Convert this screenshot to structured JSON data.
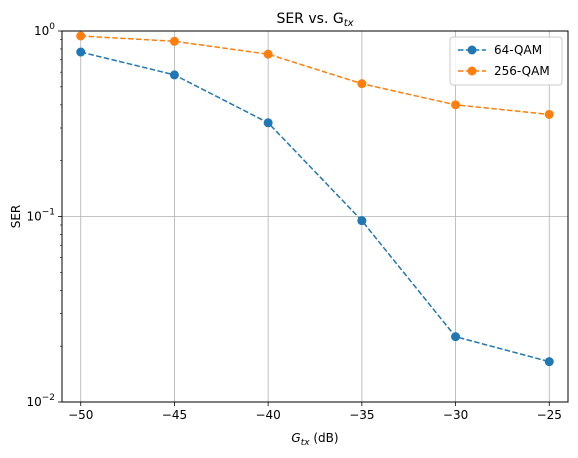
{
  "chart_data": {
    "type": "line",
    "title": "SER vs. G",
    "title_sub": "tx",
    "xlabel": "G",
    "xlabel_sub": "tx",
    "xlabel_suffix": " (dB)",
    "ylabel": "SER",
    "yscale": "log",
    "xlim": [
      -51.0,
      -24.0
    ],
    "ylim": [
      0.01,
      1
    ],
    "grid": true,
    "legend_position": "top-right",
    "x": [
      -50,
      -45,
      -40,
      -35,
      -30,
      -25
    ],
    "xticks": [
      "−50",
      "−45",
      "−40",
      "−35",
      "−30",
      "−25"
    ],
    "yticks": [
      {
        "value": 0.01,
        "base": "10",
        "exp": "−2"
      },
      {
        "value": 0.1,
        "base": "10",
        "exp": "−1"
      },
      {
        "value": 1,
        "base": "10",
        "exp": "0"
      }
    ],
    "series": [
      {
        "name": "64-QAM",
        "color": "#1f77b4",
        "values": [
          0.77,
          0.58,
          0.32,
          0.095,
          0.0225,
          0.0165
        ]
      },
      {
        "name": "256-QAM",
        "color": "#ff7f0e",
        "values": [
          0.94,
          0.88,
          0.75,
          0.52,
          0.4,
          0.355
        ]
      }
    ]
  }
}
